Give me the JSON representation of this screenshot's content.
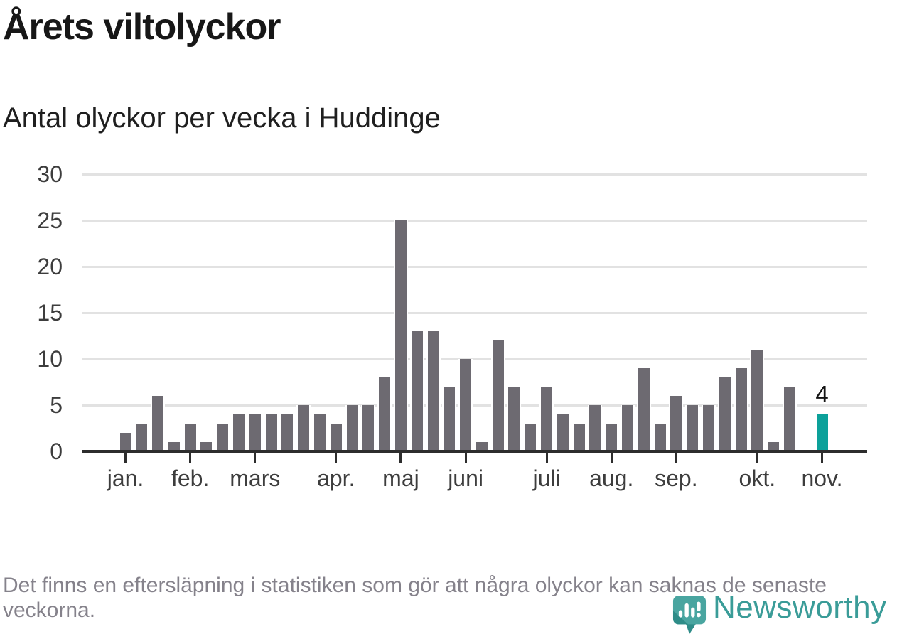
{
  "header": {
    "title": "Årets viltolyckor",
    "subtitle": "Antal olyckor per vecka i Huddinge"
  },
  "footer": {
    "note": "Det finns en eftersläpning i statistiken som gör att några olyckor kan saknas de senaste veckorna."
  },
  "logo": {
    "brand": "Newsworthy",
    "icon": "newsworthy-pin-barchart-icon"
  },
  "chart_data": {
    "type": "bar",
    "title": "Årets viltolyckor",
    "subtitle": "Antal olyckor per vecka i Huddinge",
    "x_unit": "vecka (week of year)",
    "weeks": [
      1,
      2,
      3,
      4,
      5,
      6,
      7,
      8,
      9,
      10,
      11,
      12,
      13,
      14,
      15,
      16,
      17,
      18,
      19,
      20,
      21,
      22,
      23,
      24,
      25,
      26,
      27,
      28,
      29,
      30,
      31,
      32,
      33,
      34,
      35,
      36,
      37,
      38,
      39,
      40,
      41,
      42,
      43,
      44
    ],
    "values": [
      2,
      3,
      6,
      1,
      3,
      1,
      3,
      4,
      4,
      4,
      4,
      5,
      4,
      3,
      5,
      5,
      8,
      25,
      13,
      13,
      7,
      10,
      1,
      12,
      7,
      3,
      7,
      4,
      3,
      5,
      3,
      5,
      9,
      3,
      6,
      5,
      5,
      8,
      9,
      11,
      1,
      7,
      0,
      4
    ],
    "highlight_index": 43,
    "highlight_annotation": "4",
    "month_ticks": [
      {
        "label": "jan.",
        "week": 1
      },
      {
        "label": "feb.",
        "week": 5
      },
      {
        "label": "mars",
        "week": 9
      },
      {
        "label": "apr.",
        "week": 14
      },
      {
        "label": "maj",
        "week": 18
      },
      {
        "label": "juni",
        "week": 22
      },
      {
        "label": "juli",
        "week": 27
      },
      {
        "label": "aug.",
        "week": 31
      },
      {
        "label": "sep.",
        "week": 35
      },
      {
        "label": "okt.",
        "week": 40
      },
      {
        "label": "nov.",
        "week": 44
      }
    ],
    "yticks": [
      0,
      5,
      10,
      15,
      20,
      25,
      30
    ],
    "ylim": [
      0,
      30
    ],
    "grid": true,
    "legend": "none",
    "colors": {
      "bar": "#6d6a71",
      "highlight": "#0ca19a",
      "axis": "#2d2d2d",
      "gridline": "#e2e2e2",
      "tick_text": "#3d3d3d",
      "annotation_text": "#141414",
      "footer_text": "#85828b",
      "brand_teal": "#3a9c98"
    }
  }
}
